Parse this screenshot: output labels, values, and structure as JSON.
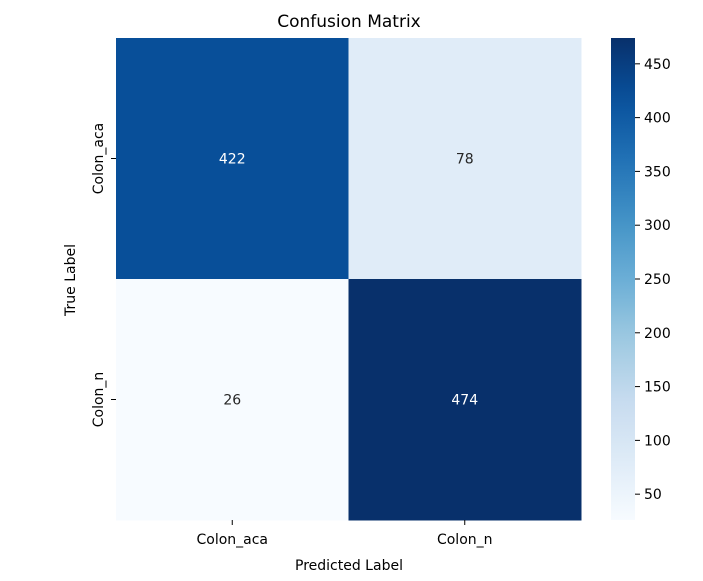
{
  "chart_data": {
    "type": "heatmap",
    "title": "Confusion Matrix",
    "xlabel": "Predicted Label",
    "ylabel": "True Label",
    "x_categories": [
      "Colon_aca",
      "Colon_n"
    ],
    "y_categories": [
      "Colon_aca",
      "Colon_n"
    ],
    "values": [
      [
        422,
        78
      ],
      [
        26,
        474
      ]
    ],
    "colormap": "Blues",
    "colorbar": {
      "min": 26,
      "max": 474,
      "ticks": [
        50,
        100,
        150,
        200,
        250,
        300,
        350,
        400,
        450
      ]
    },
    "colors": {
      "low": "#f7fbff",
      "high": "#08306b",
      "dark_text": "#262626",
      "light_text": "#ffffff"
    }
  }
}
